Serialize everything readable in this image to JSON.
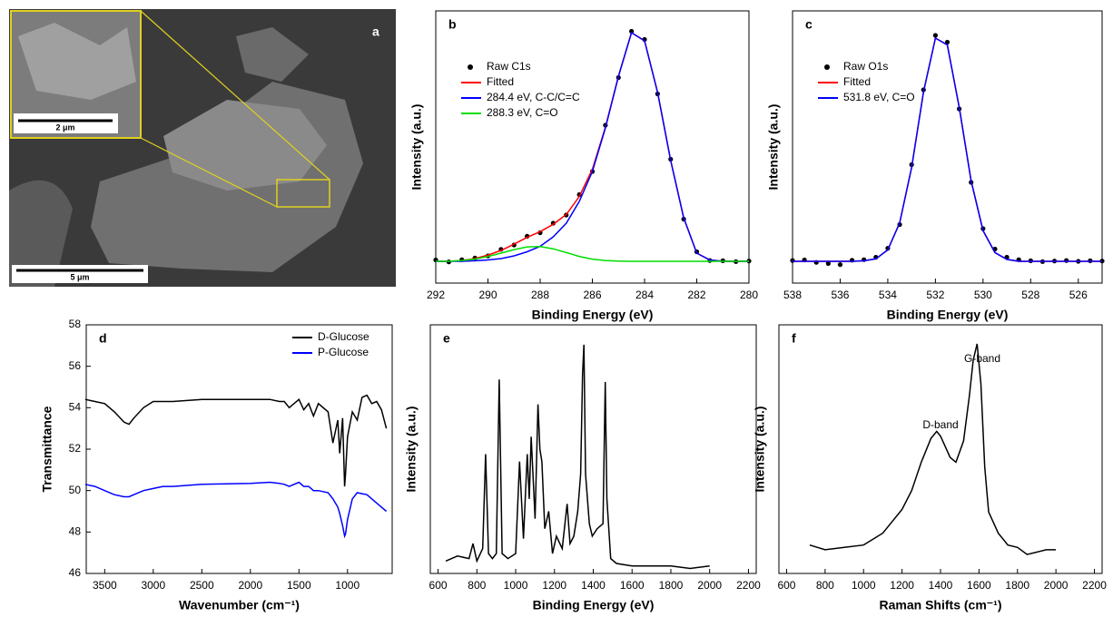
{
  "image_panel": {
    "label": "a",
    "inset_scale": "2 μm",
    "scale": "5 μm"
  },
  "chart_data": [
    {
      "type": "line",
      "label": "b",
      "x_label": "Binding Energy (eV)",
      "y_label": "Intensity (a.u.)",
      "legend": "top-left",
      "xlim": [
        292,
        280
      ],
      "xticks": [
        292,
        290,
        288,
        286,
        284,
        282,
        280
      ],
      "ylim": [
        0,
        100
      ],
      "x": [
        292,
        291.5,
        291,
        290.5,
        290,
        289.5,
        289,
        288.5,
        288,
        287.5,
        287,
        286.5,
        286,
        285.5,
        285,
        284.5,
        284,
        283.5,
        283,
        282.5,
        282,
        281.5,
        281,
        280.5,
        280
      ],
      "series": [
        {
          "name": "Raw C1s",
          "color": "#000000",
          "mode": "markers",
          "values": [
            8.5,
            7.8,
            8.6,
            9.2,
            10,
            12.4,
            14.0,
            17.2,
            18.5,
            22.0,
            25.0,
            32.5,
            41.0,
            58.0,
            75.5,
            92.5,
            89.5,
            69.5,
            45.5,
            23.5,
            11.5,
            8.3,
            8.2,
            7.9,
            8.1
          ]
        },
        {
          "name": "Fitted",
          "color": "#ff0000",
          "mode": "line",
          "values": [
            8,
            8,
            8.3,
            9,
            10.3,
            12,
            14.3,
            16.8,
            18.9,
            21.6,
            25.2,
            31.8,
            41.8,
            57.3,
            76.1,
            92,
            89,
            70,
            45,
            24,
            11,
            8.5,
            8,
            8,
            8
          ]
        },
        {
          "name": "284.4 eV, C-C/C=C",
          "color": "#0000ff",
          "mode": "line",
          "values": [
            8,
            8,
            8,
            8.2,
            8.5,
            9,
            10,
            11.5,
            13.5,
            17,
            22,
            30,
            41,
            57,
            76,
            92,
            89,
            70,
            45,
            24,
            11,
            8.5,
            8,
            8,
            8
          ]
        },
        {
          "name": "288.3 eV, C=O",
          "color": "#00dd00",
          "mode": "line",
          "values": [
            8,
            8,
            8.3,
            8.8,
            9.8,
            11,
            12.3,
            13.3,
            13.4,
            12.6,
            11.2,
            9.8,
            8.8,
            8.3,
            8.1,
            8,
            8,
            8,
            8,
            8,
            8,
            8,
            8,
            8,
            8
          ]
        }
      ]
    },
    {
      "type": "line",
      "label": "c",
      "x_label": "Binding Energy (eV)",
      "y_label": "Intensity (a.u.)",
      "legend": "top-left",
      "xlim": [
        538,
        525
      ],
      "xticks": [
        538,
        536,
        534,
        532,
        530,
        528,
        526
      ],
      "ylim": [
        0,
        100
      ],
      "x": [
        538,
        537.5,
        537,
        536.5,
        536,
        535.5,
        535,
        534.5,
        534,
        533.5,
        533,
        532.5,
        532,
        531.5,
        531,
        530.5,
        530,
        529.5,
        529,
        528.5,
        528,
        527.5,
        527,
        526.5,
        526,
        525.5,
        525
      ],
      "series": [
        {
          "name": "Raw O1s",
          "color": "#000000",
          "mode": "markers",
          "values": [
            8.3,
            8.5,
            7.6,
            7.2,
            6.8,
            8.4,
            8.6,
            9.5,
            12.8,
            21.5,
            43.5,
            71,
            91,
            88.5,
            64,
            37,
            20,
            12.5,
            9.5,
            8.6,
            8.2,
            7.9,
            8.1,
            8.3,
            8,
            8.2,
            8.1
          ]
        },
        {
          "name": "Fitted",
          "color": "#ff0000",
          "mode": "line",
          "values": [
            8,
            8,
            8,
            8,
            8,
            8,
            8.2,
            8.9,
            12.2,
            22.1,
            42.5,
            70.3,
            90,
            87.5,
            64.6,
            37.6,
            19.3,
            11.2,
            8.7,
            8,
            8,
            8,
            8,
            8,
            8,
            8,
            8
          ]
        },
        {
          "name": "531.8 eV, C=O",
          "color": "#0000ff",
          "mode": "line",
          "values": [
            8,
            8,
            8,
            8,
            8,
            8,
            8.2,
            8.9,
            12.2,
            22.1,
            42.5,
            70.3,
            90,
            87.5,
            64.6,
            37.6,
            19.3,
            11.2,
            8.7,
            8,
            8,
            8,
            8,
            8,
            8,
            8,
            8
          ]
        }
      ]
    },
    {
      "type": "line",
      "label": "d",
      "x_label": "Wavenumber (cm⁻¹)",
      "y_label": "Transmittance",
      "legend": "top-right",
      "xlim": [
        3690,
        540
      ],
      "xticks": [
        3500,
        3000,
        2500,
        2000,
        1500,
        1000
      ],
      "ylim": [
        46,
        58
      ],
      "yticks": [
        46,
        48,
        50,
        52,
        54,
        56,
        58
      ],
      "x": [
        3700,
        3600,
        3500,
        3400,
        3300,
        3250,
        3200,
        3100,
        3000,
        2900,
        2800,
        2500,
        2000,
        1800,
        1700,
        1650,
        1600,
        1500,
        1450,
        1400,
        1350,
        1300,
        1200,
        1150,
        1100,
        1080,
        1050,
        1030,
        1020,
        1000,
        950,
        900,
        850,
        800,
        750,
        700,
        650,
        600
      ],
      "series": [
        {
          "name": "D-Glucose",
          "color": "#000000",
          "mode": "line",
          "values": [
            54.4,
            54.3,
            54.2,
            53.8,
            53.3,
            53.2,
            53.5,
            54.0,
            54.3,
            54.3,
            54.3,
            54.4,
            54.4,
            54.4,
            54.3,
            54.3,
            54.0,
            54.4,
            53.9,
            54.2,
            53.6,
            54.2,
            53.8,
            52.3,
            53.4,
            51.8,
            53.5,
            50.2,
            50.8,
            52.6,
            53.8,
            53.4,
            54.5,
            54.6,
            54.2,
            54.3,
            53.9,
            53.0
          ]
        },
        {
          "name": "P-Glucose",
          "color": "#0000ff",
          "mode": "line",
          "values": [
            50.3,
            50.2,
            50.0,
            49.8,
            49.7,
            49.7,
            49.8,
            50.0,
            50.1,
            50.2,
            50.2,
            50.3,
            50.35,
            50.4,
            50.35,
            50.3,
            50.2,
            50.4,
            50.2,
            50.2,
            50.0,
            50.0,
            49.9,
            49.6,
            49.2,
            48.9,
            48.3,
            47.8,
            47.9,
            48.6,
            49.6,
            49.9,
            49.85,
            49.8,
            49.6,
            49.4,
            49.2,
            49.0
          ]
        }
      ]
    },
    {
      "type": "line",
      "label": "e",
      "x_label": "Binding Energy (eV)",
      "y_label": "Intensity (a.u.)",
      "xlim": [
        560,
        2240
      ],
      "xticks": [
        600,
        800,
        1000,
        1200,
        1400,
        1600,
        1800,
        2000,
        2200
      ],
      "ylim": [
        0,
        100
      ],
      "x": [
        640,
        700,
        760,
        780,
        800,
        830,
        845,
        860,
        880,
        900,
        915,
        930,
        960,
        1000,
        1020,
        1040,
        1060,
        1070,
        1080,
        1100,
        1115,
        1125,
        1135,
        1150,
        1170,
        1190,
        1210,
        1240,
        1265,
        1280,
        1300,
        1320,
        1335,
        1345,
        1352,
        1360,
        1372,
        1380,
        1395,
        1420,
        1450,
        1462,
        1470,
        1490,
        1520,
        1600,
        1700,
        1800,
        1900,
        2000
      ],
      "series": [
        {
          "color": "#000000",
          "mode": "line",
          "values": [
            5,
            7,
            6,
            12,
            5,
            10,
            48,
            8,
            6,
            8,
            78,
            8,
            6,
            8,
            45,
            14,
            48,
            30,
            55,
            22,
            68,
            50,
            45,
            18,
            25,
            8,
            15,
            10,
            28,
            12,
            15,
            25,
            40,
            80,
            92,
            40,
            28,
            20,
            15,
            18,
            20,
            77,
            30,
            6,
            4,
            3,
            3,
            3,
            2,
            3
          ]
        }
      ]
    },
    {
      "type": "line",
      "label": "f",
      "x_label": "Raman Shifts (cm⁻¹)",
      "y_label": "Intensity (a.u.)",
      "annotations": [
        "D-band",
        "G-band"
      ],
      "xlim": [
        560,
        2240
      ],
      "xticks": [
        600,
        800,
        1000,
        1200,
        1400,
        1600,
        1800,
        2000,
        2200
      ],
      "ylim": [
        0,
        105
      ],
      "x": [
        720,
        800,
        900,
        1000,
        1100,
        1200,
        1250,
        1300,
        1350,
        1380,
        1400,
        1450,
        1480,
        1520,
        1550,
        1570,
        1590,
        1610,
        1630,
        1650,
        1700,
        1750,
        1800,
        1850,
        1900,
        1950,
        2000
      ],
      "series": [
        {
          "color": "#000000",
          "mode": "line",
          "values": [
            12,
            10,
            11,
            12,
            17,
            27,
            35,
            47,
            57,
            60,
            58,
            49,
            47,
            56,
            75,
            90,
            97,
            80,
            45,
            26,
            17,
            12,
            11,
            8,
            9,
            10,
            10
          ]
        }
      ]
    }
  ]
}
